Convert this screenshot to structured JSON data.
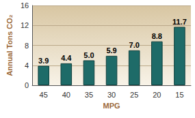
{
  "chart_data": {
    "type": "bar",
    "x_label": "MPG",
    "y_label": "Annual Tons CO₂",
    "categories": [
      "45",
      "40",
      "35",
      "30",
      "25",
      "20",
      "15"
    ],
    "values": [
      3.9,
      4.4,
      5.0,
      5.9,
      7.0,
      8.8,
      11.7
    ],
    "value_labels": [
      "3.9",
      "4.4",
      "5.0",
      "5.9",
      "7.0",
      "8.8",
      "11.7"
    ],
    "color": "#1e6b68",
    "ylim": [
      0,
      16
    ],
    "yticks": [
      0,
      4,
      8,
      12,
      16
    ],
    "grid": true,
    "data_labels": true
  }
}
